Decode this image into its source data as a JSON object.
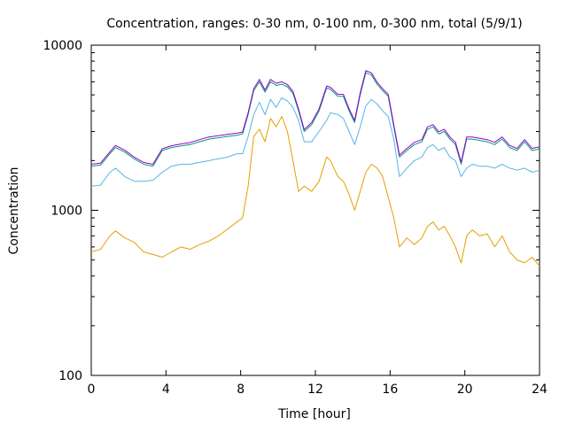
{
  "chart_data": {
    "type": "line",
    "title": "Concentration, ranges: 0-30 nm, 0-100 nm, 0-300 nm, total (5/9/1)",
    "xlabel": "Time [hour]",
    "ylabel": "Concentration",
    "xlim": [
      0,
      24
    ],
    "ylim": [
      100,
      10000
    ],
    "yscale": "log",
    "xticks": [
      0,
      4,
      8,
      12,
      16,
      20,
      24
    ],
    "xtick_labels": [
      "0",
      "4",
      "8",
      "12",
      "16",
      "20",
      "24"
    ],
    "yticks": [
      100,
      1000,
      10000
    ],
    "ytick_labels": [
      "100",
      "1000",
      "10000"
    ],
    "grid": false,
    "legend": "none",
    "series": [
      {
        "name": "0-30 nm",
        "color": "#e69f00",
        "x": [
          0,
          0.5,
          1,
          1.3,
          1.8,
          2.3,
          2.8,
          3.3,
          3.8,
          4.3,
          4.8,
          5.3,
          5.8,
          6.3,
          6.8,
          7.3,
          7.8,
          8.1,
          8.4,
          8.7,
          9.0,
          9.3,
          9.6,
          9.9,
          10.2,
          10.5,
          10.8,
          11.1,
          11.4,
          11.8,
          12.2,
          12.6,
          12.8,
          13.2,
          13.5,
          13.8,
          14.1,
          14.4,
          14.7,
          15.0,
          15.3,
          15.6,
          15.9,
          16.2,
          16.5,
          16.9,
          17.3,
          17.7,
          18.0,
          18.3,
          18.6,
          18.9,
          19.2,
          19.5,
          19.8,
          20.1,
          20.4,
          20.8,
          21.2,
          21.6,
          22.0,
          22.4,
          22.8,
          23.2,
          23.6,
          24.0
        ],
        "values": [
          560,
          580,
          700,
          750,
          680,
          640,
          560,
          540,
          520,
          560,
          600,
          580,
          620,
          650,
          700,
          770,
          850,
          900,
          1400,
          2800,
          3100,
          2600,
          3600,
          3200,
          3700,
          3000,
          2000,
          1300,
          1400,
          1300,
          1500,
          2100,
          2000,
          1600,
          1500,
          1250,
          1000,
          1300,
          1700,
          1900,
          1800,
          1600,
          1200,
          900,
          600,
          680,
          620,
          680,
          800,
          850,
          760,
          800,
          700,
          600,
          480,
          700,
          760,
          700,
          720,
          600,
          700,
          560,
          500,
          480,
          520,
          460
        ]
      },
      {
        "name": "0-100 nm",
        "color": "#56b4e9",
        "x": [
          0,
          0.5,
          1,
          1.3,
          1.8,
          2.3,
          2.8,
          3.3,
          3.8,
          4.3,
          4.8,
          5.3,
          5.8,
          6.3,
          6.8,
          7.3,
          7.8,
          8.1,
          8.4,
          8.7,
          9.0,
          9.3,
          9.6,
          9.9,
          10.2,
          10.5,
          10.8,
          11.1,
          11.4,
          11.8,
          12.2,
          12.6,
          12.8,
          13.2,
          13.5,
          13.8,
          14.1,
          14.4,
          14.7,
          15.0,
          15.3,
          15.6,
          15.9,
          16.2,
          16.5,
          16.9,
          17.3,
          17.7,
          18.0,
          18.3,
          18.6,
          18.9,
          19.2,
          19.5,
          19.8,
          20.1,
          20.4,
          20.8,
          21.2,
          21.6,
          22.0,
          22.4,
          22.8,
          23.2,
          23.6,
          24.0
        ],
        "values": [
          1400,
          1420,
          1700,
          1800,
          1600,
          1500,
          1500,
          1520,
          1700,
          1850,
          1900,
          1900,
          1950,
          2000,
          2050,
          2100,
          2200,
          2200,
          2800,
          3800,
          4500,
          3800,
          4700,
          4200,
          4800,
          4600,
          4200,
          3500,
          2600,
          2600,
          3000,
          3500,
          3900,
          3800,
          3600,
          3000,
          2500,
          3200,
          4300,
          4700,
          4400,
          4000,
          3700,
          2700,
          1600,
          1800,
          2000,
          2100,
          2400,
          2500,
          2300,
          2400,
          2100,
          2000,
          1600,
          1800,
          1900,
          1850,
          1850,
          1800,
          1900,
          1800,
          1750,
          1800,
          1700,
          1750
        ]
      },
      {
        "name": "0-300 nm",
        "color": "#009e73",
        "x": [
          0,
          0.5,
          1,
          1.3,
          1.8,
          2.3,
          2.8,
          3.3,
          3.8,
          4.3,
          4.8,
          5.3,
          5.8,
          6.3,
          6.8,
          7.3,
          7.8,
          8.1,
          8.4,
          8.7,
          9.0,
          9.3,
          9.6,
          9.9,
          10.2,
          10.5,
          10.8,
          11.1,
          11.4,
          11.8,
          12.2,
          12.6,
          12.8,
          13.2,
          13.5,
          13.8,
          14.1,
          14.4,
          14.7,
          15.0,
          15.3,
          15.6,
          15.9,
          16.2,
          16.5,
          16.9,
          17.3,
          17.7,
          18.0,
          18.3,
          18.6,
          18.9,
          19.2,
          19.5,
          19.8,
          20.1,
          20.4,
          20.8,
          21.2,
          21.6,
          22.0,
          22.4,
          22.8,
          23.2,
          23.6,
          24.0
        ],
        "values": [
          1850,
          1880,
          2200,
          2400,
          2250,
          2050,
          1900,
          1850,
          2300,
          2400,
          2450,
          2500,
          2600,
          2700,
          2750,
          2800,
          2850,
          2900,
          3800,
          5300,
          6000,
          5200,
          6000,
          5700,
          5800,
          5600,
          5100,
          4000,
          3000,
          3300,
          4000,
          5500,
          5400,
          4900,
          4900,
          4000,
          3400,
          5000,
          6800,
          6600,
          5800,
          5300,
          4900,
          3200,
          2100,
          2300,
          2500,
          2600,
          3100,
          3200,
          2900,
          3000,
          2700,
          2500,
          1900,
          2700,
          2700,
          2650,
          2600,
          2500,
          2700,
          2400,
          2300,
          2600,
          2300,
          2350
        ]
      },
      {
        "name": "total",
        "color": "#9400d3",
        "x": [
          0,
          0.5,
          1,
          1.3,
          1.8,
          2.3,
          2.8,
          3.3,
          3.8,
          4.3,
          4.8,
          5.3,
          5.8,
          6.3,
          6.8,
          7.3,
          7.8,
          8.1,
          8.4,
          8.7,
          9.0,
          9.3,
          9.6,
          9.9,
          10.2,
          10.5,
          10.8,
          11.1,
          11.4,
          11.8,
          12.2,
          12.6,
          12.8,
          13.2,
          13.5,
          13.8,
          14.1,
          14.4,
          14.7,
          15.0,
          15.3,
          15.6,
          15.9,
          16.2,
          16.5,
          16.9,
          17.3,
          17.7,
          18.0,
          18.3,
          18.6,
          18.9,
          19.2,
          19.5,
          19.8,
          20.1,
          20.4,
          20.8,
          21.2,
          21.6,
          22.0,
          22.4,
          22.8,
          23.2,
          23.6,
          24.0
        ],
        "values": [
          1900,
          1930,
          2260,
          2470,
          2310,
          2100,
          1950,
          1900,
          2360,
          2460,
          2520,
          2570,
          2680,
          2780,
          2830,
          2880,
          2930,
          2980,
          3900,
          5450,
          6200,
          5350,
          6200,
          5870,
          6000,
          5770,
          5250,
          4100,
          3080,
          3400,
          4120,
          5660,
          5560,
          5040,
          5040,
          4120,
          3500,
          5150,
          7000,
          6800,
          5970,
          5450,
          5040,
          3300,
          2160,
          2370,
          2580,
          2680,
          3200,
          3300,
          2990,
          3090,
          2780,
          2580,
          1960,
          2780,
          2780,
          2730,
          2680,
          2580,
          2780,
          2470,
          2370,
          2680,
          2370,
          2420
        ]
      }
    ]
  }
}
